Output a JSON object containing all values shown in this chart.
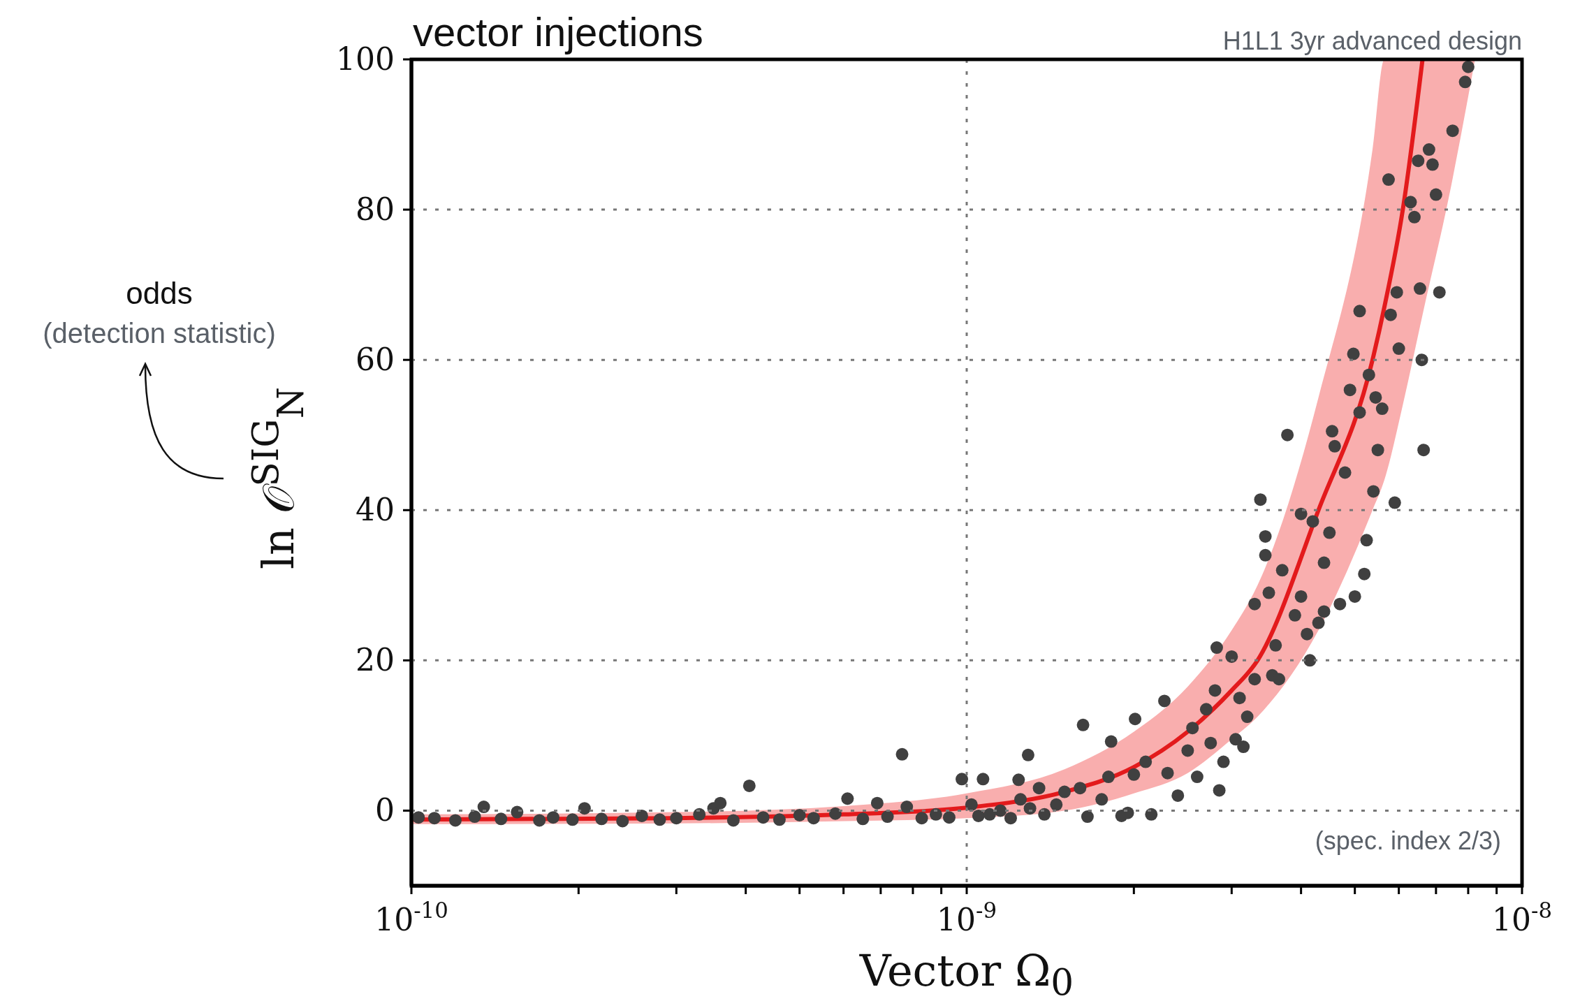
{
  "chart_data": {
    "type": "scatter",
    "title": "vector injections",
    "xlabel": "Vector Ω$_{0}$",
    "ylabel": "ln 𝒪$^{SIG}$$_{N}$",
    "annotations": [
      "H1L1 3yr advanced design",
      "(spec. index 2/3)",
      "odds",
      "(detection statistic)"
    ],
    "log": "x",
    "grid": true,
    "xlim": [
      1e-10,
      1e-08
    ],
    "xticks": [
      {
        "value": 1e-10,
        "label": "10$^{-10}$"
      },
      {
        "value": 2e-10,
        "label": null
      },
      {
        "value": 3e-10,
        "label": null
      },
      {
        "value": 4e-10,
        "label": null
      },
      {
        "value": 5e-10,
        "label": null
      },
      {
        "value": 6e-10,
        "label": null
      },
      {
        "value": 7e-10,
        "label": null
      },
      {
        "value": 8e-10,
        "label": null
      },
      {
        "value": 9e-10,
        "label": null
      },
      {
        "value": 1e-09,
        "label": "10$^{-9}$"
      },
      {
        "value": 2e-09,
        "label": null
      },
      {
        "value": 3e-09,
        "label": null
      },
      {
        "value": 4e-09,
        "label": null
      },
      {
        "value": 5e-09,
        "label": null
      },
      {
        "value": 6e-09,
        "label": null
      },
      {
        "value": 7e-09,
        "label": null
      },
      {
        "value": 8e-09,
        "label": null
      },
      {
        "value": 9e-09,
        "label": null
      },
      {
        "value": 1e-08,
        "label": "10$^{-8}$"
      }
    ],
    "ylim": [
      -10,
      100
    ],
    "yticks": [
      0,
      20,
      40,
      60,
      80,
      100
    ],
    "series": [
      {
        "color": "#404040",
        "marker": "circle",
        "x": [
          1.03e-10,
          1.1e-10,
          1.2e-10,
          1.3e-10,
          1.35e-10,
          1.45e-10,
          1.55e-10,
          1.7e-10,
          1.8e-10,
          1.95e-10,
          2.05e-10,
          2.2e-10,
          2.4e-10,
          2.6e-10,
          2.8e-10,
          3e-10,
          3.3e-10,
          3.5e-10,
          3.6e-10,
          3.8e-10,
          4.06e-10,
          4.3e-10,
          4.6e-10,
          5e-10,
          5.3e-10,
          5.8e-10,
          6.1e-10,
          6.5e-10,
          6.9e-10,
          7.2e-10,
          7.65e-10,
          7.8e-10,
          8.3e-10,
          8.8e-10,
          9.3e-10,
          9.8e-10,
          1.02e-09,
          1.05e-09,
          1.07e-09,
          1.1e-09,
          1.15e-09,
          1.2e-09,
          1.24e-09,
          1.25e-09,
          1.29e-09,
          1.3e-09,
          1.35e-09,
          1.38e-09,
          1.45e-09,
          1.5e-09,
          1.6e-09,
          1.62e-09,
          1.65e-09,
          1.75e-09,
          1.8e-09,
          1.82e-09,
          1.9e-09,
          1.95e-09,
          2e-09,
          2.01e-09,
          2.1e-09,
          2.15e-09,
          2.27e-09,
          2.3e-09,
          2.4e-09,
          2.5e-09,
          2.55e-09,
          2.6e-09,
          2.7e-09,
          2.75e-09,
          2.8e-09,
          2.82e-09,
          2.85e-09,
          2.9e-09,
          3e-09,
          3.05e-09,
          3.1e-09,
          3.15e-09,
          3.2e-09,
          3.3e-09,
          3.3e-09,
          3.38e-09,
          3.45e-09,
          3.45e-09,
          3.5e-09,
          3.55e-09,
          3.6e-09,
          3.65e-09,
          3.7e-09,
          3.78e-09,
          3.9e-09,
          4e-09,
          4e-09,
          4.1e-09,
          4.15e-09,
          4.2e-09,
          4.3e-09,
          4.4e-09,
          4.4e-09,
          4.5e-09,
          4.55e-09,
          4.6e-09,
          4.7e-09,
          4.8e-09,
          4.9e-09,
          4.97e-09,
          5e-09,
          5.1e-09,
          5.1e-09,
          5.2e-09,
          5.25e-09,
          5.3e-09,
          5.4e-09,
          5.45e-09,
          5.5e-09,
          5.6e-09,
          5.75e-09,
          5.8e-09,
          5.9e-09,
          5.95e-09,
          6e-09,
          6.3e-09,
          6.4e-09,
          6.5e-09,
          6.55e-09,
          6.6e-09,
          6.65e-09,
          6.8e-09,
          6.9e-09,
          7e-09,
          7.1e-09,
          7.5e-09,
          7.9e-09,
          8e-09
        ],
        "values": [
          -0.9,
          -1.0,
          -1.3,
          -0.8,
          0.5,
          -1.1,
          -0.2,
          -1.3,
          -0.9,
          -1.2,
          0.3,
          -1.1,
          -1.4,
          -0.7,
          -1.2,
          -1.0,
          -0.5,
          0.3,
          1.0,
          -1.3,
          3.3,
          -0.9,
          -1.2,
          -0.6,
          -1.0,
          -0.4,
          1.6,
          -1.1,
          1.0,
          -0.8,
          7.5,
          0.5,
          -1.0,
          -0.5,
          -0.9,
          4.2,
          0.8,
          -0.7,
          4.2,
          -0.5,
          0.0,
          -1.0,
          4.1,
          1.5,
          7.4,
          0.3,
          3.0,
          -0.5,
          0.8,
          2.5,
          3.0,
          11.4,
          -0.8,
          1.5,
          4.5,
          9.2,
          -0.7,
          -0.3,
          4.8,
          12.2,
          6.5,
          -0.5,
          14.6,
          5.0,
          2.0,
          8.0,
          11.0,
          4.5,
          13.5,
          9.0,
          16.0,
          21.7,
          2.7,
          6.5,
          20.5,
          9.5,
          15.0,
          8.5,
          12.5,
          17.5,
          27.5,
          41.4,
          36.5,
          34.0,
          29.0,
          18.0,
          22.0,
          17.5,
          32.0,
          50.0,
          26.0,
          28.5,
          39.5,
          23.5,
          20.0,
          38.5,
          25.0,
          33.0,
          26.5,
          37.0,
          50.5,
          48.5,
          27.5,
          45.0,
          56.0,
          60.8,
          28.5,
          66.5,
          53.0,
          31.5,
          36.0,
          58.0,
          42.5,
          55.0,
          48.0,
          53.5,
          84.0,
          66.0,
          41.0,
          69.0,
          61.5,
          81.0,
          79.0,
          86.5,
          69.5,
          60.0,
          48.0,
          88.0,
          86.0,
          82.0,
          69.0,
          90.5,
          97.0,
          99.0
        ]
      },
      {
        "type": "line",
        "color": "#e31a1c",
        "marker": "none",
        "x": [
          1e-10,
          3e-10,
          6e-10,
          1e-09,
          1.5e-09,
          2e-09,
          2.5e-09,
          3e-09,
          3.34e-09,
          4.3e-09,
          5.38e-09,
          5.65e-09,
          6.1e-09,
          6.62e-09,
          7.4e-09,
          8.23e-09
        ],
        "values": [
          -1.2,
          -1.0,
          -0.5,
          0.4,
          2.5,
          5.8,
          10.5,
          16,
          20,
          40,
          60,
          67,
          80,
          100,
          null,
          null
        ],
        "upper": [
          -0.5,
          -0.2,
          0.6,
          2.3,
          5.5,
          10.5,
          16.5,
          24,
          30,
          55,
          88,
          100,
          100,
          100,
          100,
          100
        ],
        "lower": [
          -1.8,
          -1.7,
          -1.4,
          -1.0,
          0.0,
          2.3,
          5.0,
          9.5,
          12.5,
          24,
          40,
          44,
          54,
          66,
          82,
          100
        ]
      }
    ]
  }
}
